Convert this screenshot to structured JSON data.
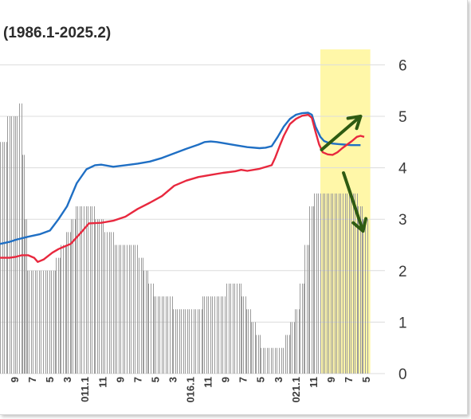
{
  "title": "(1986.1-2025.2)",
  "chart_data": {
    "type": "line+bar",
    "title": "(1986.1-2025.2)",
    "y_right": {
      "ylim": [
        0,
        6.3
      ],
      "ticks": [
        "0",
        "1",
        "2",
        "3",
        "4",
        "5",
        "6"
      ]
    },
    "x_tick_labels": [
      "9",
      "7",
      "5",
      "3",
      "011.1",
      "11",
      "9",
      "7",
      "5",
      "3",
      "016.1",
      "11",
      "9",
      "7",
      "5",
      "3",
      "021.1",
      "11",
      "9",
      "7",
      "5"
    ],
    "x_range": [
      -0.3,
      31.3
    ],
    "highlight_x_range": [
      26.0,
      30.1
    ],
    "highlight_color": "#fff7a8",
    "series": [
      {
        "color": "#1f6fc4",
        "points": [
          [
            -0.3,
            2.52
          ],
          [
            0.5,
            2.56
          ],
          [
            1,
            2.6
          ],
          [
            2,
            2.66
          ],
          [
            3,
            2.71
          ],
          [
            3.8,
            2.78
          ],
          [
            4.5,
            3.0
          ],
          [
            5.2,
            3.25
          ],
          [
            6,
            3.7
          ],
          [
            6.8,
            3.97
          ],
          [
            7.5,
            4.05
          ],
          [
            8,
            4.06
          ],
          [
            9,
            4.02
          ],
          [
            10,
            4.05
          ],
          [
            11,
            4.08
          ],
          [
            12,
            4.12
          ],
          [
            13,
            4.19
          ],
          [
            14,
            4.28
          ],
          [
            15,
            4.37
          ],
          [
            16,
            4.45
          ],
          [
            16.5,
            4.5
          ],
          [
            17,
            4.51
          ],
          [
            17.5,
            4.5
          ],
          [
            18,
            4.48
          ],
          [
            19,
            4.44
          ],
          [
            20,
            4.4
          ],
          [
            21,
            4.38
          ],
          [
            21.5,
            4.39
          ],
          [
            22,
            4.42
          ],
          [
            22.5,
            4.6
          ],
          [
            23,
            4.8
          ],
          [
            23.5,
            4.95
          ],
          [
            24,
            5.03
          ],
          [
            24.5,
            5.06
          ],
          [
            25,
            5.07
          ],
          [
            25.3,
            5.03
          ],
          [
            25.6,
            4.8
          ],
          [
            26.0,
            4.6
          ],
          [
            26.3,
            4.52
          ],
          [
            26.6,
            4.49
          ],
          [
            27,
            4.47
          ],
          [
            27.5,
            4.46
          ],
          [
            28,
            4.45
          ],
          [
            28.5,
            4.44
          ],
          [
            29,
            4.44
          ],
          [
            29.3,
            4.44
          ]
        ]
      },
      {
        "color": "#e8283e",
        "points": [
          [
            -0.3,
            2.25
          ],
          [
            0.5,
            2.25
          ],
          [
            1,
            2.27
          ],
          [
            1.5,
            2.3
          ],
          [
            2,
            2.3
          ],
          [
            2.5,
            2.25
          ],
          [
            2.8,
            2.17
          ],
          [
            3.3,
            2.22
          ],
          [
            4,
            2.35
          ],
          [
            4.5,
            2.42
          ],
          [
            5,
            2.47
          ],
          [
            5.5,
            2.52
          ],
          [
            6,
            2.65
          ],
          [
            6.5,
            2.78
          ],
          [
            7,
            2.92
          ],
          [
            8,
            2.93
          ],
          [
            9,
            2.97
          ],
          [
            10,
            3.05
          ],
          [
            11,
            3.2
          ],
          [
            12,
            3.32
          ],
          [
            13,
            3.45
          ],
          [
            14,
            3.65
          ],
          [
            15,
            3.75
          ],
          [
            16,
            3.82
          ],
          [
            17,
            3.86
          ],
          [
            18,
            3.9
          ],
          [
            19,
            3.93
          ],
          [
            19.5,
            3.96
          ],
          [
            20,
            3.94
          ],
          [
            21,
            3.98
          ],
          [
            22,
            4.05
          ],
          [
            22.3,
            4.2
          ],
          [
            22.7,
            4.45
          ],
          [
            23,
            4.62
          ],
          [
            23.5,
            4.85
          ],
          [
            24,
            4.95
          ],
          [
            24.5,
            5.01
          ],
          [
            25,
            5.03
          ],
          [
            25.3,
            4.97
          ],
          [
            25.6,
            4.7
          ],
          [
            25.9,
            4.45
          ],
          [
            26.2,
            4.3
          ],
          [
            26.6,
            4.26
          ],
          [
            27,
            4.25
          ],
          [
            27.4,
            4.3
          ],
          [
            27.8,
            4.38
          ],
          [
            28.2,
            4.45
          ],
          [
            28.6,
            4.52
          ],
          [
            29,
            4.6
          ],
          [
            29.3,
            4.62
          ],
          [
            29.6,
            4.6
          ]
        ]
      }
    ],
    "bars": {
      "color": "#9c9c9c",
      "segments": [
        [
          -0.3,
          0.3,
          4.5
        ],
        [
          0.3,
          1.1,
          5.0
        ],
        [
          1.1,
          1.3,
          5.0
        ],
        [
          1.3,
          1.5,
          5.25
        ],
        [
          1.5,
          1.7,
          4.25
        ],
        [
          1.7,
          1.9,
          3.0
        ],
        [
          1.9,
          4.3,
          2.0
        ],
        [
          4.3,
          4.7,
          2.25
        ],
        [
          4.7,
          5.1,
          2.5
        ],
        [
          5.1,
          5.5,
          2.75
        ],
        [
          5.5,
          5.9,
          3.0
        ],
        [
          5.9,
          7.5,
          3.25
        ],
        [
          7.5,
          8.3,
          3.0
        ],
        [
          8.3,
          9.1,
          2.75
        ],
        [
          9.1,
          11.1,
          2.5
        ],
        [
          11.1,
          11.5,
          2.25
        ],
        [
          11.5,
          11.9,
          2.0
        ],
        [
          11.9,
          12.3,
          1.75
        ],
        [
          12.3,
          13.9,
          1.5
        ],
        [
          13.9,
          16.3,
          1.25
        ],
        [
          16.3,
          18.3,
          1.5
        ],
        [
          18.3,
          19.5,
          1.75
        ],
        [
          19.5,
          19.9,
          1.5
        ],
        [
          19.9,
          20.3,
          1.25
        ],
        [
          20.3,
          20.7,
          1.0
        ],
        [
          20.7,
          21.1,
          0.75
        ],
        [
          21.1,
          23.1,
          0.5
        ],
        [
          23.1,
          23.5,
          0.75
        ],
        [
          23.5,
          23.9,
          1.0
        ],
        [
          23.9,
          24.3,
          1.25
        ],
        [
          24.3,
          24.7,
          1.75
        ],
        [
          24.7,
          25.1,
          2.5
        ],
        [
          25.1,
          25.5,
          3.25
        ],
        [
          25.5,
          26.0,
          3.5
        ],
        [
          26.0,
          29.1,
          3.5
        ],
        [
          29.1,
          29.5,
          3.25
        ],
        [
          29.5,
          29.9,
          3.0
        ]
      ]
    },
    "annotations": [
      {
        "type": "arrow",
        "color": "#2e5b12",
        "direction": "up-right",
        "from": [
          26.1,
          4.35
        ],
        "to": [
          29.3,
          5.0
        ]
      },
      {
        "type": "arrow",
        "color": "#2e5b12",
        "direction": "down-right",
        "from": [
          27.9,
          3.9
        ],
        "to": [
          29.5,
          2.77
        ]
      }
    ]
  }
}
